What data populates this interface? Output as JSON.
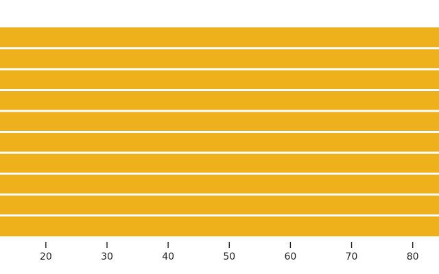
{
  "chart_data": {
    "type": "bar",
    "orientation": "horizontal",
    "title": "",
    "xlabel": "",
    "ylabel": "",
    "categories": [
      "",
      "",
      "",
      "",
      "",
      "",
      "",
      "",
      "",
      ""
    ],
    "values": [
      90,
      90,
      90,
      90,
      90,
      90,
      90,
      90,
      90,
      90
    ],
    "xlim": [
      12.5,
      84.3
    ],
    "xticks": [
      20,
      30,
      40,
      50,
      60,
      70,
      80
    ],
    "xtick_labels": [
      "20",
      "30",
      "40",
      "50",
      "60",
      "70",
      "80"
    ],
    "grid": false,
    "legend": "none",
    "colors": {
      "bar": "#eeb11c",
      "tick": "#1f1f1f",
      "background": "#ffffff"
    }
  }
}
